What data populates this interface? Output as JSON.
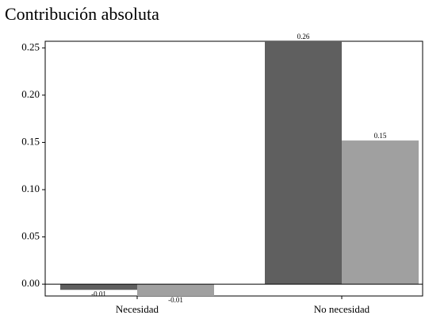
{
  "chart_data": {
    "type": "bar",
    "title": "Contribución absoluta",
    "categories": [
      "Necesidad",
      "No necesidad"
    ],
    "series": [
      {
        "color": "#5f5f5f",
        "values": [
          -0.006,
          0.257
        ],
        "value_labels": [
          "-0.01",
          "0.26"
        ]
      },
      {
        "color": "#a0a0a0",
        "values": [
          -0.0125,
          0.152
        ],
        "value_labels": [
          "-0.01",
          "0.15"
        ]
      }
    ],
    "ylim": [
      -0.0125,
      0.257
    ],
    "yticks": [
      {
        "value": 0,
        "label": "0.00"
      },
      {
        "value": 0.05,
        "label": "0.05"
      },
      {
        "value": 0.1,
        "label": "0.10"
      },
      {
        "value": 0.15,
        "label": "0.15"
      },
      {
        "value": 0.2,
        "label": "0.20"
      },
      {
        "value": 0.25,
        "label": "0.25"
      }
    ]
  }
}
